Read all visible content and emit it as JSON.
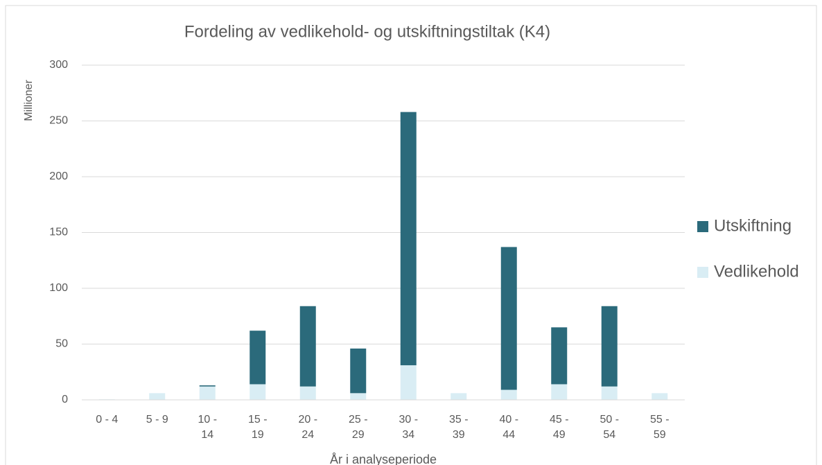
{
  "chart_data": {
    "type": "stacked_bar",
    "title": "Fordeling av vedlikehold- og utskiftningstiltak (K4)",
    "y_label": "Millioner",
    "x_label": "År i analyseperiode",
    "categories": [
      "0 - 4",
      "5 - 9",
      "10 - 14",
      "15 - 19",
      "20 - 24",
      "25 - 29",
      "30 - 34",
      "35 - 39",
      "40 - 44",
      "45 - 49",
      "50 - 54",
      "55 - 59"
    ],
    "series": [
      {
        "name": "Vedlikehold",
        "color": "#d9edf4",
        "values": [
          0.5,
          6,
          12,
          14,
          12,
          6,
          31,
          6,
          9,
          14,
          12,
          6
        ]
      },
      {
        "name": "Utskiftning",
        "color": "#2b6a7b",
        "values": [
          0,
          0,
          1,
          48,
          72,
          40,
          227,
          0,
          128,
          51,
          72,
          0
        ]
      }
    ],
    "legend_order": [
      "Utskiftning",
      "Vedlikehold"
    ],
    "ylim": [
      0,
      300
    ],
    "yticks": [
      0,
      50,
      100,
      150,
      200,
      250,
      300
    ],
    "grid": true,
    "legend": "right"
  }
}
